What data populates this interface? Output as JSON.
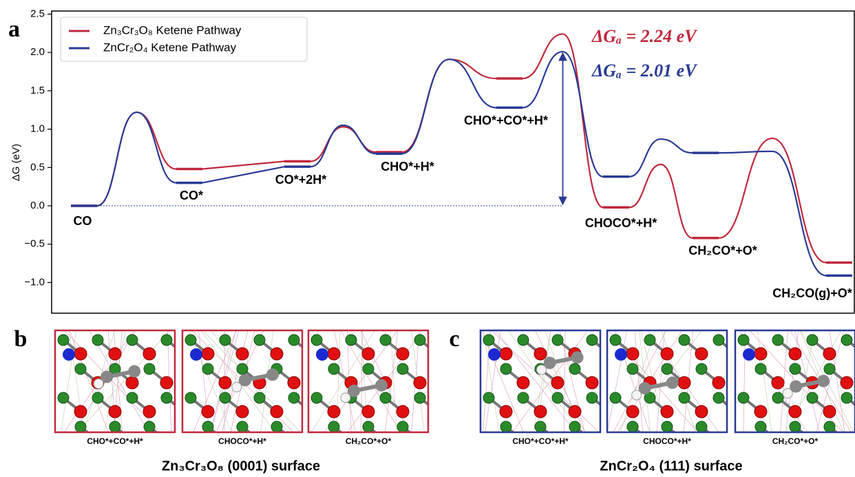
{
  "chart_data": {
    "type": "line",
    "panel_label": "a",
    "ylabel": "ΔG (eV)",
    "categories": [
      "CO",
      "CO*",
      "CO*+2H*",
      "CHO*+H*",
      "CHO*+CO*+H*",
      "CHOCO*+H*",
      "CH₂CO*+O*",
      "CH₂CO(g)+O*"
    ],
    "series": [
      {
        "name": "Zn₃Cr₃O₈ Ketene Pathway",
        "color": "#c0283c",
        "values": [
          0,
          0.48,
          0.58,
          0.7,
          1.66,
          -0.02,
          -0.42,
          -0.74
        ],
        "barriers": [
          1.22,
          null,
          1.03,
          1.91,
          2.24,
          0.54,
          0.88
        ]
      },
      {
        "name": "ZnCr₂O₄ Ketene Pathway",
        "color": "#283a93",
        "values": [
          0,
          0.3,
          0.51,
          0.68,
          1.28,
          0.38,
          0.69,
          -0.91
        ],
        "barriers": [
          1.22,
          null,
          1.05,
          1.91,
          2.01,
          0.87,
          0.71
        ]
      }
    ],
    "annotations": [
      {
        "text": "ΔGₐ = 2.24 eV",
        "color": "#c0283c"
      },
      {
        "text": "ΔGₐ = 2.01 eV",
        "color": "#283a93"
      }
    ],
    "ylim": [
      -1.4,
      2.54
    ],
    "yticks": [
      {
        "value": -1,
        "label": "−1.0"
      },
      {
        "value": -0.5,
        "label": "−0.5"
      },
      {
        "value": 0,
        "label": "0.0"
      },
      0.5,
      {
        "value": 1,
        "label": "1.0"
      },
      1.5,
      {
        "value": 2,
        "label": "2.0"
      },
      2.5
    ],
    "legend": "upper left"
  },
  "panels": [
    {
      "letter": "b",
      "caption": "Zn₃Cr₃O₈ (0001) surface",
      "color": "#c0283c",
      "images": [
        "CHO*+CO*+H*",
        "CHOCO*+H*",
        "CH₂CO*+O*"
      ]
    },
    {
      "letter": "c",
      "caption": "ZnCr₂O₄ (111) surface",
      "color": "#283a93",
      "images": [
        "CHO*+CO*+H*",
        "CHOCO*+H*",
        "CH₂CO*+O*"
      ]
    }
  ]
}
